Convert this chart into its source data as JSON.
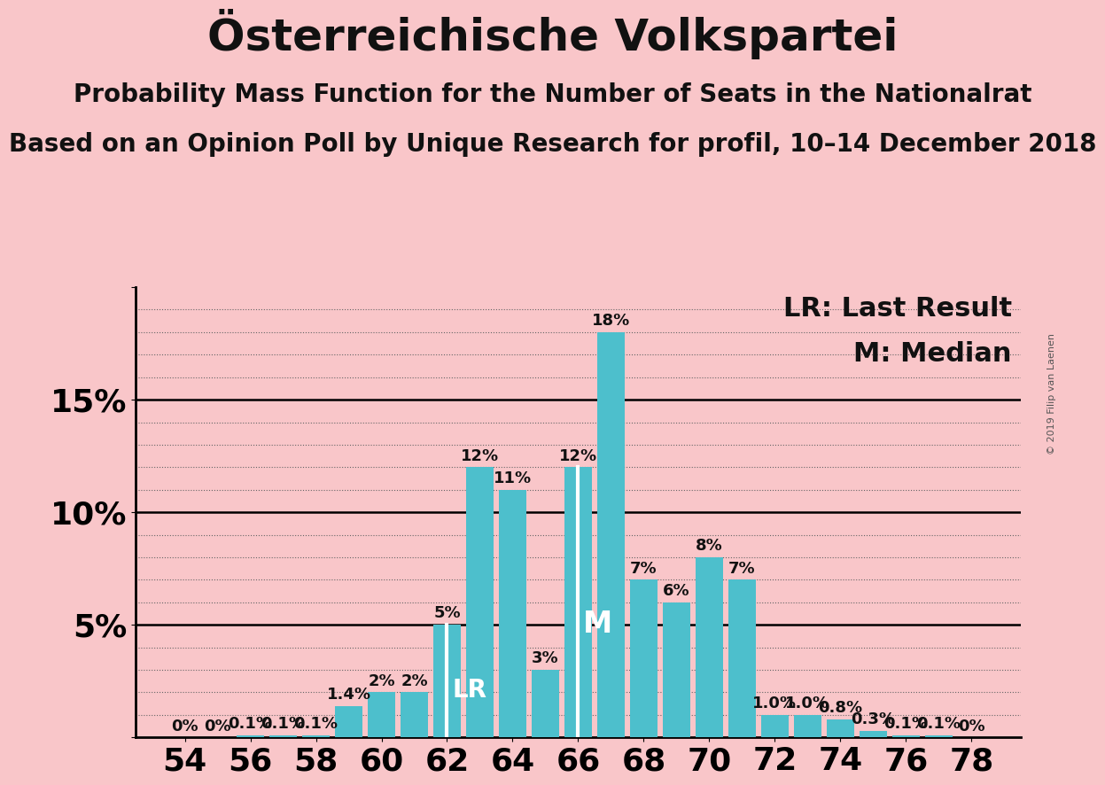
{
  "title": "Österreichische Volkspartei",
  "subtitle1": "Probability Mass Function for the Number of Seats in the Nationalrat",
  "subtitle2": "Based on an Opinion Poll by Unique Research for profil, 10–14 December 2018",
  "copyright": "© 2019 Filip van Laenen",
  "background_color": "#f9c6c9",
  "bar_color": "#4dbfcc",
  "seats": [
    54,
    55,
    56,
    57,
    58,
    59,
    60,
    61,
    62,
    63,
    64,
    65,
    66,
    67,
    68,
    69,
    70,
    71,
    72,
    73,
    74,
    75,
    76,
    77,
    78
  ],
  "probabilities": [
    0.0,
    0.0,
    0.1,
    0.1,
    0.1,
    1.4,
    2.0,
    2.0,
    5.0,
    12.0,
    11.0,
    3.0,
    12.0,
    18.0,
    7.0,
    6.0,
    8.0,
    7.0,
    1.0,
    1.0,
    0.8,
    0.3,
    0.1,
    0.1,
    0.0
  ],
  "bar_labels": [
    "0%",
    "0%",
    "0.1%",
    "0.1%",
    "0.1%",
    "1.4%",
    "2%",
    "2%",
    "5%",
    "12%",
    "11%",
    "3%",
    "12%",
    "18%",
    "7%",
    "6%",
    "8%",
    "7%",
    "1.0%",
    "1.0%",
    "0.8%",
    "0.3%",
    "0.1%",
    "0.1%",
    "0%"
  ],
  "last_result": 62,
  "median": 66,
  "ylim": [
    0,
    20
  ],
  "xtick_positions": [
    54,
    56,
    58,
    60,
    62,
    64,
    66,
    68,
    70,
    72,
    74,
    76,
    78
  ],
  "legend_lr": "LR: Last Result",
  "legend_m": "M: Median",
  "title_fontsize": 36,
  "subtitle_fontsize": 20,
  "bar_label_fontsize": 13,
  "axis_tick_fontsize": 26,
  "legend_fontsize": 22,
  "lr_label_fontsize": 20,
  "m_label_fontsize": 24
}
